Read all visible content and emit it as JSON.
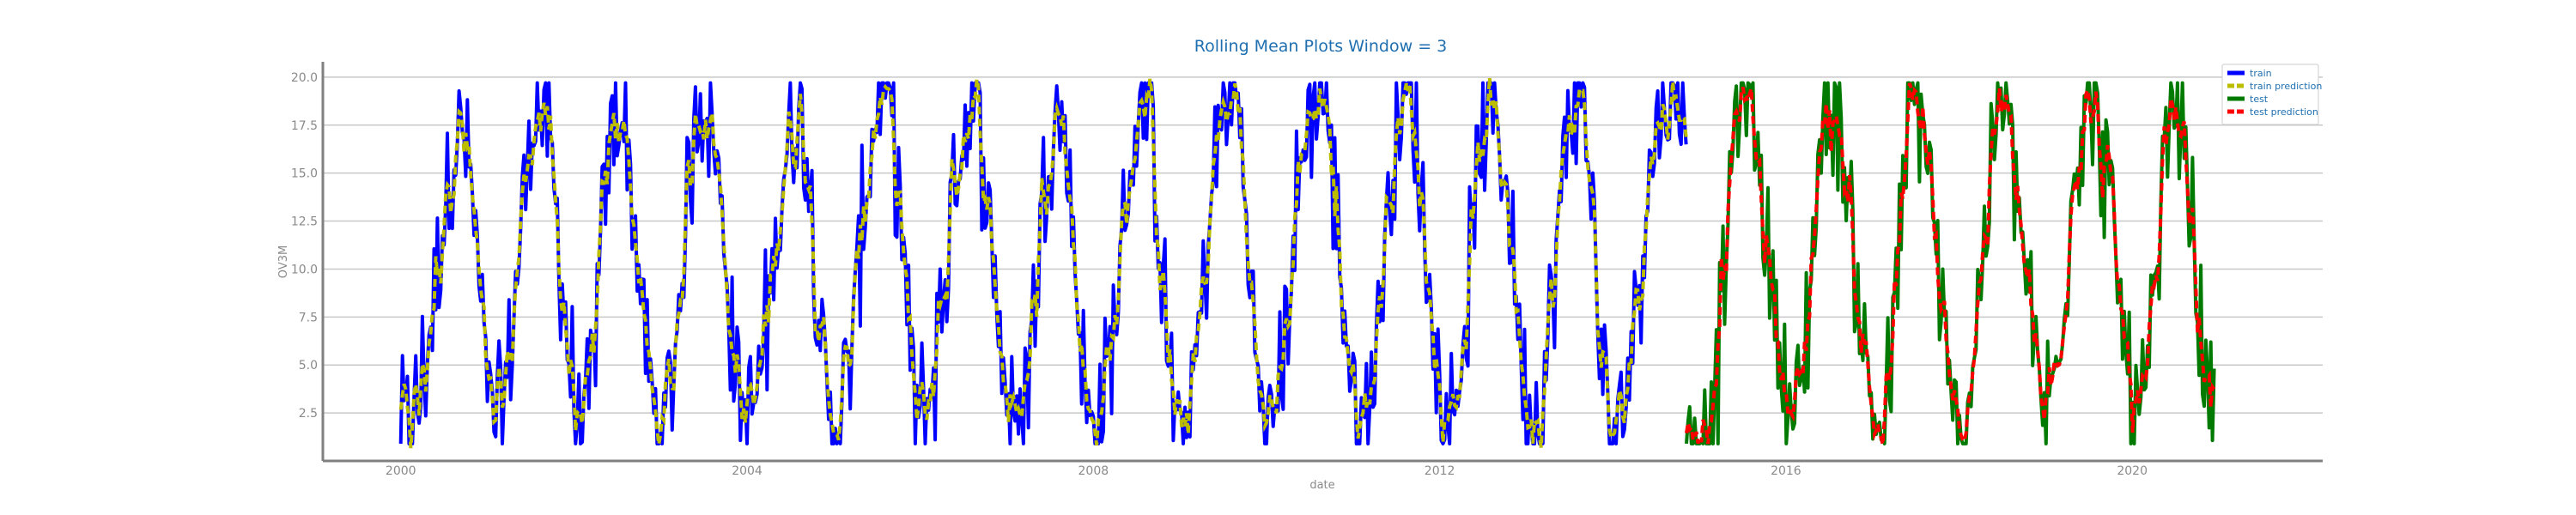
{
  "chart_data": {
    "type": "line",
    "title": "Rolling Mean Plots Window = 3",
    "xlabel": "date",
    "ylabel": "OV3M",
    "xlim": [
      1999.1,
      2022.2
    ],
    "ylim": [
      0.0,
      20.8
    ],
    "x_ticks": [
      2000,
      2004,
      2008,
      2012,
      2016,
      2020
    ],
    "x_tick_labels": [
      "2000",
      "2004",
      "2008",
      "2012",
      "2016",
      "2020"
    ],
    "y_ticks": [
      2.5,
      5.0,
      7.5,
      10.0,
      12.5,
      15.0,
      17.5,
      20.0
    ],
    "y_tick_labels": [
      "2.5",
      "5.0",
      "7.5",
      "10.0",
      "12.5",
      "15.0",
      "17.5",
      "20.0"
    ],
    "grid": "horizontal",
    "legend_position": "top-right",
    "series": [
      {
        "name": "train",
        "color": "#0000ff",
        "style": "solid",
        "x_range": [
          2000.0,
          2014.85
        ],
        "seasonal_peaks": [
          {
            "x": 2000.7,
            "y": 17.0
          },
          {
            "x": 2001.6,
            "y": 18.4
          },
          {
            "x": 2002.5,
            "y": 18.2
          },
          {
            "x": 2003.5,
            "y": 18.9
          },
          {
            "x": 2004.6,
            "y": 18.2
          },
          {
            "x": 2005.6,
            "y": 19.5
          },
          {
            "x": 2006.6,
            "y": 18.5
          },
          {
            "x": 2007.6,
            "y": 18.2
          },
          {
            "x": 2008.6,
            "y": 18.3
          },
          {
            "x": 2009.6,
            "y": 19.6
          },
          {
            "x": 2010.6,
            "y": 19.7
          },
          {
            "x": 2011.6,
            "y": 19.5
          },
          {
            "x": 2012.6,
            "y": 18.5
          },
          {
            "x": 2013.6,
            "y": 19.5
          },
          {
            "x": 2014.6,
            "y": 18.6
          }
        ],
        "seasonal_troughs": [
          {
            "x": 2000.1,
            "y": 1.8
          },
          {
            "x": 2001.1,
            "y": 1.8
          },
          {
            "x": 2002.1,
            "y": 1.7
          },
          {
            "x": 2003.0,
            "y": 1.5
          },
          {
            "x": 2004.0,
            "y": 2.2
          },
          {
            "x": 2005.0,
            "y": 1.7
          },
          {
            "x": 2006.0,
            "y": 2.2
          },
          {
            "x": 2007.1,
            "y": 2.0
          },
          {
            "x": 2008.0,
            "y": 1.6
          },
          {
            "x": 2009.0,
            "y": 1.4
          },
          {
            "x": 2010.0,
            "y": 1.7
          },
          {
            "x": 2011.1,
            "y": 1.7
          },
          {
            "x": 2012.1,
            "y": 1.9
          },
          {
            "x": 2013.1,
            "y": 2.4
          },
          {
            "x": 2014.0,
            "y": 1.0
          }
        ]
      },
      {
        "name": "train prediction",
        "color": "#bdbd00",
        "style": "dashed",
        "x_range": [
          2000.0,
          2014.85
        ],
        "note_relation": "tracks train"
      },
      {
        "name": "test",
        "color": "#007a00",
        "style": "solid",
        "x_range": [
          2014.85,
          2020.95
        ],
        "seasonal_peaks": [
          {
            "x": 2015.5,
            "y": 19.7
          },
          {
            "x": 2016.5,
            "y": 18.8
          },
          {
            "x": 2017.5,
            "y": 18.8
          },
          {
            "x": 2018.5,
            "y": 18.3
          },
          {
            "x": 2019.5,
            "y": 19.0
          },
          {
            "x": 2020.5,
            "y": 18.5
          }
        ],
        "seasonal_troughs": [
          {
            "x": 2015.1,
            "y": 1.4
          },
          {
            "x": 2016.1,
            "y": 2.4
          },
          {
            "x": 2017.1,
            "y": 1.7
          },
          {
            "x": 2018.0,
            "y": 1.2
          },
          {
            "x": 2019.0,
            "y": 2.9
          },
          {
            "x": 2020.1,
            "y": 2.5
          },
          {
            "x": 2020.95,
            "y": 2.0
          }
        ]
      },
      {
        "name": "test prediction",
        "color": "#ff0000",
        "style": "dashed",
        "x_range": [
          2014.85,
          2020.95
        ],
        "note_relation": "tracks test"
      }
    ]
  }
}
